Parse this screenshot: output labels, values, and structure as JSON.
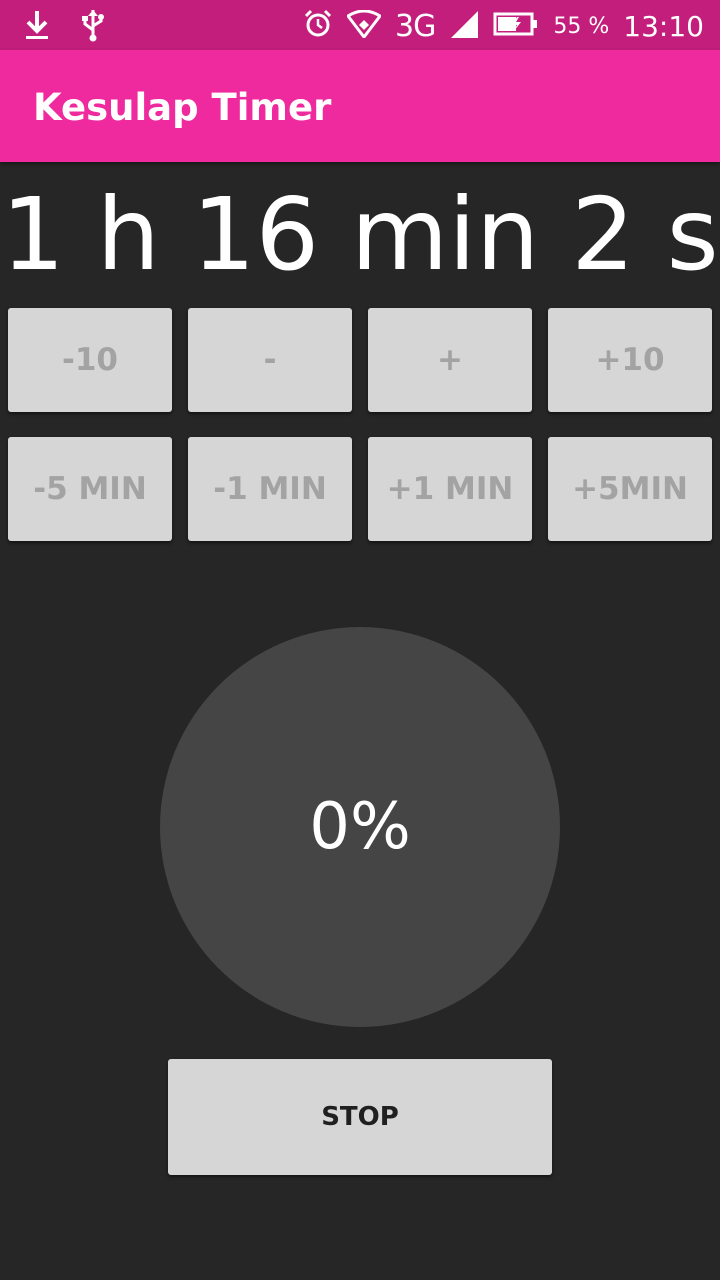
{
  "status_bar": {
    "battery": "55 %",
    "clock": "13:10",
    "network": "3G",
    "bg_color": "#c41e7d",
    "icons": [
      "download-icon",
      "usb-icon",
      "alarm-icon",
      "wifi-icon",
      "signal-icon",
      "battery-icon"
    ]
  },
  "app_bar": {
    "title": "Kesulap Timer",
    "color": "#ee2a9e"
  },
  "timer": {
    "display": "1 h 16 min 2 s"
  },
  "buttons": {
    "row1": [
      "-10",
      "-",
      "+",
      "+10"
    ],
    "row2": [
      "-5 MIN",
      "-1 MIN",
      "+1 MIN",
      "+5MIN"
    ]
  },
  "progress": {
    "label": "0%",
    "value": 0
  },
  "stop_button": {
    "label": "STOP"
  }
}
